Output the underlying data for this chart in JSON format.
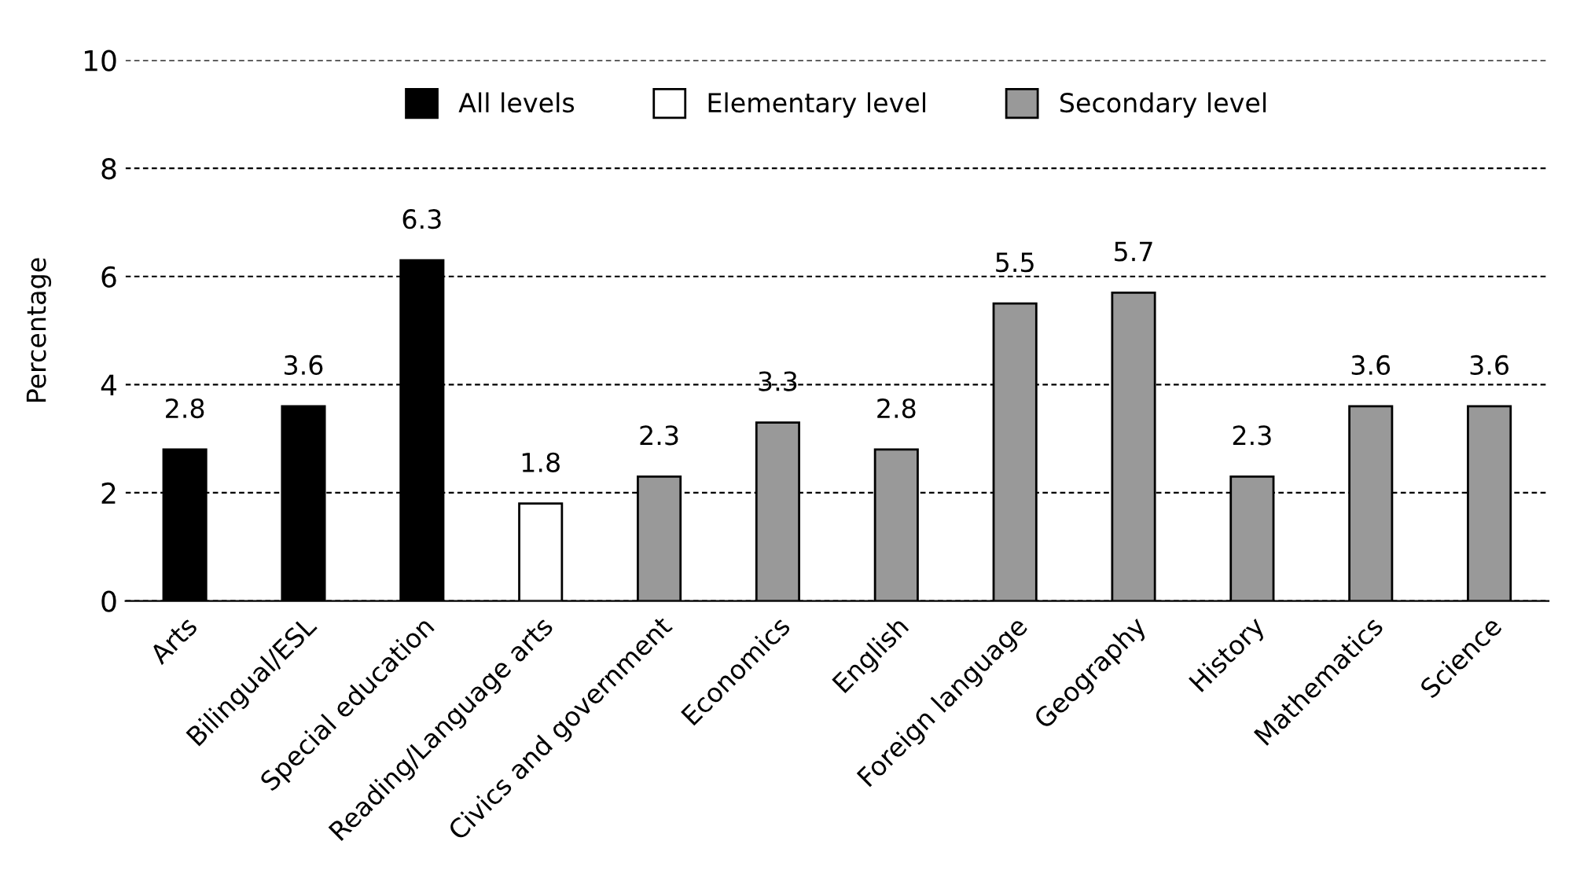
{
  "chart_data": {
    "type": "bar",
    "ylabel": "Percentage",
    "categories": [
      "Arts",
      "Bilingual/ESL",
      "Special education",
      "Reading/Language arts",
      "Civics and government",
      "Economics",
      "English",
      "Foreign language",
      "Geography",
      "History",
      "Mathematics",
      "Science"
    ],
    "series": [
      {
        "name": "All levels",
        "color": "#000000",
        "values": [
          2.8,
          3.6,
          6.3,
          null,
          null,
          null,
          null,
          null,
          null,
          null,
          null,
          null
        ]
      },
      {
        "name": "Elementary level",
        "color": "#ffffff",
        "values": [
          null,
          null,
          null,
          1.8,
          null,
          null,
          null,
          null,
          null,
          null,
          null,
          null
        ]
      },
      {
        "name": "Secondary level",
        "color": "#999999",
        "values": [
          null,
          null,
          null,
          null,
          2.3,
          3.3,
          2.8,
          5.5,
          5.7,
          2.3,
          3.6,
          3.6
        ]
      }
    ],
    "ylim": [
      0,
      10
    ],
    "yticks": [
      0,
      2,
      4,
      6,
      8,
      10
    ],
    "grid": "y",
    "legend": "top",
    "data_labels": true
  }
}
